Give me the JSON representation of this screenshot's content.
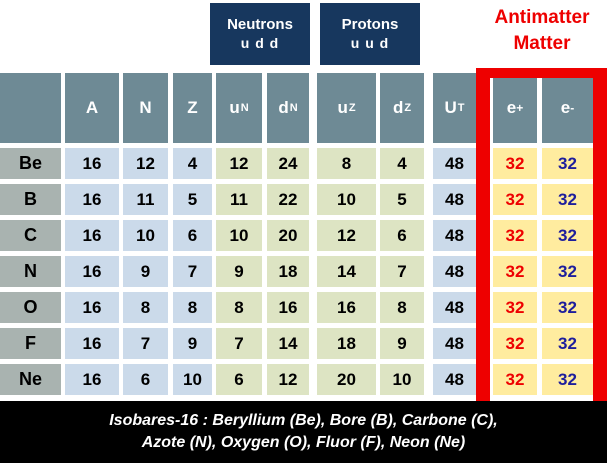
{
  "annotations": {
    "neutrons": {
      "title": "Neutrons",
      "quarks": "u d d"
    },
    "protons": {
      "title": "Protons",
      "quarks": "u u d"
    },
    "antimatter_label": "Antimatter",
    "matter_label": "Matter"
  },
  "chart_data": {
    "type": "table",
    "title": "Isobares-16",
    "columns": [
      {
        "id": "element",
        "label": "",
        "base": ""
      },
      {
        "id": "A",
        "label": "A",
        "base": "A"
      },
      {
        "id": "N",
        "label": "N",
        "base": "N"
      },
      {
        "id": "Z",
        "label": "Z",
        "base": "Z"
      },
      {
        "id": "uN",
        "label": "uN",
        "base": "u",
        "sub": "N"
      },
      {
        "id": "dN",
        "label": "dN",
        "base": "d",
        "sub": "N"
      },
      {
        "id": "uZ",
        "label": "uZ",
        "base": "u",
        "sub": "Z"
      },
      {
        "id": "dZ",
        "label": "dZ",
        "base": "d",
        "sub": "Z"
      },
      {
        "id": "UT",
        "label": "UT",
        "base": "U",
        "sub": "T"
      },
      {
        "id": "e_plus",
        "label": "e+",
        "base": "e",
        "sup": "+"
      },
      {
        "id": "e_minus",
        "label": "e-",
        "base": "e",
        "sup": "-"
      }
    ],
    "rows": [
      {
        "element": "Be",
        "values": [
          16,
          12,
          4,
          12,
          24,
          8,
          4,
          48,
          32,
          32
        ]
      },
      {
        "element": "B",
        "values": [
          16,
          11,
          5,
          11,
          22,
          10,
          5,
          48,
          32,
          32
        ]
      },
      {
        "element": "C",
        "values": [
          16,
          10,
          6,
          10,
          20,
          12,
          6,
          48,
          32,
          32
        ]
      },
      {
        "element": "N",
        "values": [
          16,
          9,
          7,
          9,
          18,
          14,
          7,
          48,
          32,
          32
        ]
      },
      {
        "element": "O",
        "values": [
          16,
          8,
          8,
          8,
          16,
          16,
          8,
          48,
          32,
          32
        ]
      },
      {
        "element": "F",
        "values": [
          16,
          7,
          9,
          7,
          14,
          18,
          9,
          48,
          32,
          32
        ]
      },
      {
        "element": "Ne",
        "values": [
          16,
          6,
          10,
          6,
          12,
          20,
          10,
          48,
          32,
          32
        ]
      }
    ]
  },
  "caption": {
    "line1": "Isobares-16 : Beryllium (Be), Bore (B), Carbone (C),",
    "line2": "Azote (N), Oxygen (O), Fluor (F), Neon (Ne)"
  },
  "colors": {
    "navy_box": "#17375E",
    "header_cell": "#6E8A95",
    "element_cell": "#A9B3B0",
    "blue_cell": "#CBDAEA",
    "green_cell": "#DDE4C3",
    "yellow_cell": "#FFEC9F",
    "accent_red": "#EE0000",
    "electron_value_blue": "#1E1E9C",
    "caption_bg": "#000000"
  }
}
